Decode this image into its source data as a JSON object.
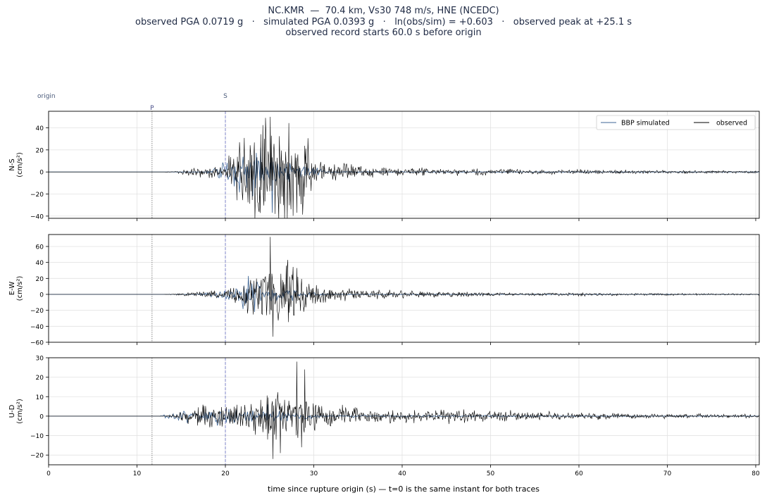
{
  "title": {
    "line1": "NC.KMR  —  70.4 km, Vs30 748 m/s, HNE (NCEDC)",
    "line2": "observed PGA 0.0719 g   ·   simulated PGA 0.0393 g   ·   ln(obs/sim) = +0.603   ·   observed peak at +25.1 s",
    "line3": "observed record starts 60.0 s before origin"
  },
  "chart_data": {
    "type": "line",
    "xlabel": "time since rupture origin (s)   —   t=0 is the same instant for both traces",
    "xlim": [
      0,
      80.4
    ],
    "xticks": [
      0,
      10,
      20,
      30,
      40,
      50,
      60,
      70,
      80
    ],
    "grid": true,
    "colors": {
      "observed": "#000000",
      "simulated": "#3d6494",
      "p_marker": "#888888",
      "s_marker": "#7f86c9"
    },
    "markers": [
      {
        "label": "origin",
        "t": 0
      },
      {
        "label": "P",
        "t": 11.7
      },
      {
        "label": "S",
        "t": 20.0
      }
    ],
    "legend": {
      "placement": "top-right",
      "entries": [
        "BBP simulated",
        "observed"
      ]
    },
    "panels": [
      {
        "ylabel": "N-S\n(cm/s²)",
        "ylim": [
          -42,
          55
        ],
        "yticks": [
          -40,
          -20,
          0,
          20,
          40
        ],
        "observed_envelope": [
          [
            0,
            0
          ],
          [
            13,
            0
          ],
          [
            14,
            0.4
          ],
          [
            15,
            1.5
          ],
          [
            16,
            3
          ],
          [
            18,
            4
          ],
          [
            19.5,
            5
          ],
          [
            20,
            6
          ],
          [
            21,
            15
          ],
          [
            22,
            25
          ],
          [
            23,
            32
          ],
          [
            24,
            35
          ],
          [
            25,
            44
          ],
          [
            26,
            40
          ],
          [
            27,
            38
          ],
          [
            28,
            30
          ],
          [
            29,
            24
          ],
          [
            30,
            12
          ],
          [
            31,
            9
          ],
          [
            32,
            7
          ],
          [
            35,
            5
          ],
          [
            40,
            3
          ],
          [
            45,
            3
          ],
          [
            50,
            2.5
          ],
          [
            55,
            2
          ],
          [
            60,
            1.8
          ],
          [
            65,
            1.5
          ],
          [
            70,
            1.3
          ],
          [
            75,
            1.1
          ],
          [
            80.4,
            1
          ]
        ],
        "observed_peaks": [
          {
            "t": 25.1,
            "v": 50
          },
          {
            "t": 25.6,
            "v": -38
          },
          {
            "t": 28.1,
            "v": 43
          },
          {
            "t": 28.1,
            "v": -37
          },
          {
            "t": 26.6,
            "v": -30
          }
        ],
        "simulated_envelope": [
          [
            0,
            0
          ],
          [
            17.5,
            0
          ],
          [
            18.5,
            3
          ],
          [
            20,
            8
          ],
          [
            21,
            14
          ],
          [
            22,
            18
          ],
          [
            23,
            17
          ],
          [
            24,
            15
          ],
          [
            25,
            10
          ],
          [
            26,
            8
          ],
          [
            28,
            6
          ],
          [
            29,
            5
          ],
          [
            30,
            3
          ],
          [
            31,
            1.5
          ],
          [
            32,
            0.5
          ],
          [
            80.4,
            0
          ]
        ],
        "simulated_peaks": [
          {
            "t": 25.3,
            "v": -37
          },
          {
            "t": 24.0,
            "v": 22
          }
        ]
      },
      {
        "ylabel": "E-W\n(cm/s²)",
        "ylim": [
          -60,
          75
        ],
        "yticks": [
          -60,
          -40,
          -20,
          0,
          20,
          40,
          60
        ],
        "observed_envelope": [
          [
            0,
            0
          ],
          [
            13,
            0
          ],
          [
            14,
            0.5
          ],
          [
            15,
            1.5
          ],
          [
            16,
            2
          ],
          [
            18,
            3
          ],
          [
            20,
            5
          ],
          [
            21,
            10
          ],
          [
            22,
            15
          ],
          [
            23,
            20
          ],
          [
            24,
            25
          ],
          [
            25,
            40
          ],
          [
            26,
            30
          ],
          [
            27,
            28
          ],
          [
            28,
            24
          ],
          [
            29,
            20
          ],
          [
            30,
            12
          ],
          [
            31,
            8
          ],
          [
            32,
            7
          ],
          [
            35,
            5
          ],
          [
            40,
            4
          ],
          [
            45,
            3
          ],
          [
            50,
            2
          ],
          [
            55,
            1.8
          ],
          [
            60,
            1.6
          ],
          [
            65,
            1.3
          ],
          [
            70,
            1.1
          ],
          [
            80.4,
            0.8
          ]
        ],
        "observed_peaks": [
          {
            "t": 25.1,
            "v": 72
          },
          {
            "t": 25.4,
            "v": -53
          },
          {
            "t": 26.9,
            "v": 36
          },
          {
            "t": 28.1,
            "v": 33
          }
        ],
        "simulated_envelope": [
          [
            0,
            0
          ],
          [
            16,
            0
          ],
          [
            18,
            2
          ],
          [
            20,
            5
          ],
          [
            21,
            10
          ],
          [
            22,
            15
          ],
          [
            23,
            16
          ],
          [
            24,
            14
          ],
          [
            25,
            10
          ],
          [
            26,
            8
          ],
          [
            27,
            6
          ],
          [
            28,
            5
          ],
          [
            30,
            2
          ],
          [
            32,
            0.5
          ],
          [
            80.4,
            0
          ]
        ],
        "simulated_peaks": [
          {
            "t": 23.3,
            "v": -22
          },
          {
            "t": 22.6,
            "v": 23
          }
        ]
      },
      {
        "ylabel": "U-D\n(cm/s²)",
        "ylim": [
          -25,
          30
        ],
        "yticks": [
          -20,
          -10,
          0,
          10,
          20,
          30
        ],
        "observed_envelope": [
          [
            0,
            0
          ],
          [
            13,
            0
          ],
          [
            14,
            0.5
          ],
          [
            15,
            2
          ],
          [
            16,
            4
          ],
          [
            17,
            5
          ],
          [
            18,
            5
          ],
          [
            19,
            5
          ],
          [
            20,
            5
          ],
          [
            21,
            5
          ],
          [
            22,
            6
          ],
          [
            23,
            6
          ],
          [
            24,
            8
          ],
          [
            25,
            10
          ],
          [
            26,
            10
          ],
          [
            27,
            10
          ],
          [
            28,
            12
          ],
          [
            29,
            8
          ],
          [
            30,
            6
          ],
          [
            32,
            4
          ],
          [
            35,
            3.5
          ],
          [
            40,
            3
          ],
          [
            45,
            3
          ],
          [
            50,
            2.5
          ],
          [
            55,
            2
          ],
          [
            60,
            1.5
          ],
          [
            65,
            1.3
          ],
          [
            70,
            1
          ],
          [
            80.4,
            0.8
          ]
        ],
        "observed_peaks": [
          {
            "t": 28.1,
            "v": 28
          },
          {
            "t": 25.4,
            "v": -22
          },
          {
            "t": 29.0,
            "v": 24
          },
          {
            "t": 28.6,
            "v": -16
          },
          {
            "t": 26.2,
            "v": -19
          }
        ],
        "simulated_envelope": [
          [
            0,
            0
          ],
          [
            12.5,
            0
          ],
          [
            13,
            1
          ],
          [
            15,
            2.5
          ],
          [
            17,
            3
          ],
          [
            19,
            3
          ],
          [
            21,
            3
          ],
          [
            23,
            3
          ],
          [
            25,
            3
          ],
          [
            26,
            2
          ],
          [
            28,
            1.5
          ],
          [
            30,
            1
          ],
          [
            32,
            0.5
          ],
          [
            80.4,
            0
          ]
        ],
        "simulated_peaks": [
          {
            "t": 24.8,
            "v": 6
          }
        ]
      }
    ]
  }
}
